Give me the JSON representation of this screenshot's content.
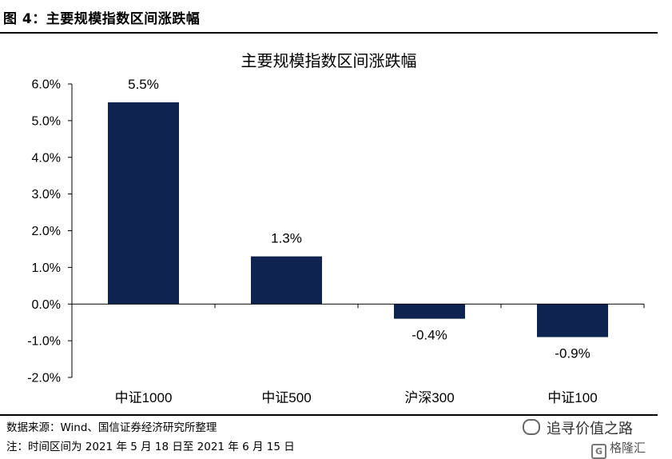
{
  "figure": {
    "title": "图 4：主要规模指数区间涨跌幅",
    "source": "数据来源：Wind、国信证券经济研究所整理",
    "note": "注：时间区间为 2021 年 5 月 18 日至 2021 年 6 月 15 日",
    "watermark_left": "追寻价值之路",
    "watermark_right": "格隆汇",
    "watermark_right_icon": "G",
    "bar_color": "#0f2350"
  },
  "chart_data": {
    "type": "bar",
    "title": "主要规模指数区间涨跌幅",
    "categories": [
      "中证1000",
      "中证500",
      "沪深300",
      "中证100"
    ],
    "values": [
      5.5,
      1.3,
      -0.4,
      -0.9
    ],
    "data_labels": [
      "5.5%",
      "1.3%",
      "-0.4%",
      "-0.9%"
    ],
    "ylim": [
      -2.0,
      6.0
    ],
    "yticks": [
      6.0,
      5.0,
      4.0,
      3.0,
      2.0,
      1.0,
      0.0,
      -1.0,
      -2.0
    ],
    "ytick_labels": [
      "6.0%",
      "5.0%",
      "4.0%",
      "3.0%",
      "2.0%",
      "1.0%",
      "0.0%",
      "-1.0%",
      "-2.0%"
    ],
    "xlabel": "",
    "ylabel": "",
    "grid": false,
    "legend": false
  }
}
